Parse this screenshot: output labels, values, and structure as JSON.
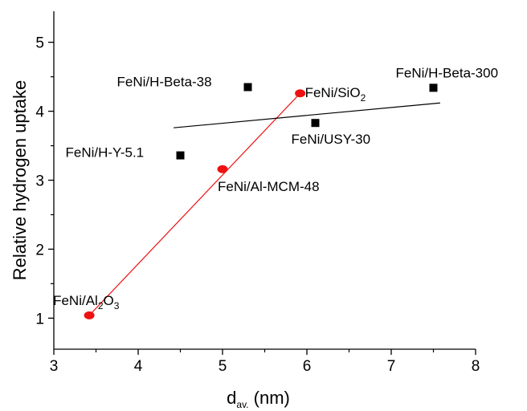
{
  "chart_data": {
    "type": "scatter",
    "title": "",
    "xlabel": {
      "main": "d",
      "sub": "av.",
      "rest": " (nm)"
    },
    "ylabel": "Relative hydrogen uptake",
    "xlim": [
      3,
      8
    ],
    "ylim": [
      0.55,
      5.45
    ],
    "xticks": [
      3,
      4,
      5,
      6,
      7,
      8
    ],
    "yticks": [
      1,
      2,
      3,
      4,
      5
    ],
    "grid": false,
    "series": [
      {
        "marker": "circle",
        "color": "#ee1111",
        "points": [
          {
            "x": 3.42,
            "y": 1.04,
            "label": {
              "main": "FeNi/Al",
              "sub": "2",
              "tail": "O",
              "sub2": "3"
            }
          },
          {
            "x": 5.0,
            "y": 3.16,
            "label": {
              "main": "FeNi/Al-MCM-48"
            }
          },
          {
            "x": 5.92,
            "y": 4.26,
            "label": {
              "main": "FeNi/SiO",
              "sub": "2"
            }
          }
        ],
        "fit_line": {
          "x": [
            3.42,
            5.92
          ],
          "y": [
            1.04,
            4.26
          ],
          "color": "#ee1111"
        }
      },
      {
        "marker": "square",
        "color": "#000000",
        "points": [
          {
            "x": 4.5,
            "y": 3.36,
            "label": {
              "main": "FeNi/H-Y-5.1"
            }
          },
          {
            "x": 5.3,
            "y": 4.35,
            "label": {
              "main": "FeNi/H-Beta-38"
            }
          },
          {
            "x": 6.1,
            "y": 3.83,
            "label": {
              "main": "FeNi/USY-30"
            }
          },
          {
            "x": 7.5,
            "y": 4.34,
            "label": {
              "main": "FeNi/H-Beta-300"
            }
          }
        ],
        "fit_line": {
          "x": [
            4.42,
            7.58
          ],
          "y": [
            3.76,
            4.12
          ],
          "color": "#000000"
        }
      }
    ]
  }
}
